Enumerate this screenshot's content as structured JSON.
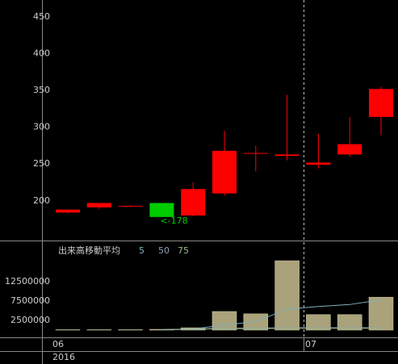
{
  "chart_data": [
    {
      "type": "candlestick",
      "categories": [
        null,
        null,
        null,
        null,
        null,
        null,
        null,
        null,
        null,
        null,
        null
      ],
      "open": [
        184,
        191,
        193,
        197,
        180,
        210,
        264,
        261,
        249,
        263,
        314
      ],
      "high": [
        188,
        197,
        194,
        197,
        225,
        295,
        275,
        344,
        291,
        314,
        355
      ],
      "low": [
        183,
        189,
        192,
        178,
        179,
        207,
        240,
        255,
        244,
        260,
        289
      ],
      "close": [
        188,
        197,
        193,
        178,
        216,
        268,
        265,
        263,
        252,
        277,
        352
      ],
      "up_color": "#ff0000",
      "down_color": "#00cc00",
      "ylim": [
        146,
        473
      ],
      "yticks": [
        200,
        250,
        300,
        350,
        400,
        450
      ],
      "annotation": "<-178"
    },
    {
      "type": "bar",
      "title": "出来高移動平均",
      "values": [
        100000,
        100000,
        100000,
        200000,
        600000,
        4800000,
        4200000,
        17900000,
        4000000,
        4000000,
        8500000
      ],
      "color": "#a9a27a",
      "series": [
        {
          "name": "5",
          "color": "#7fb0c0",
          "values": [
            null,
            null,
            null,
            100000,
            300000,
            1300000,
            2200000,
            5400000,
            6100000,
            6600000,
            7800000
          ]
        },
        {
          "name": "50",
          "color": "#8f9fb8",
          "values": [
            null,
            null,
            null,
            100000,
            200000,
            500000,
            500000,
            600000,
            600000,
            600000,
            600000
          ]
        },
        {
          "name": "75",
          "color": "#9ab890",
          "values": [
            null,
            null,
            null,
            100000,
            200000,
            400000,
            400000,
            500000,
            500000,
            500000,
            500000
          ]
        }
      ],
      "ylim": [
        0,
        22700000
      ],
      "yticks": [
        2500000,
        7500000,
        12500000
      ],
      "x_labels": [
        "06",
        "07"
      ],
      "year": "2016"
    }
  ]
}
